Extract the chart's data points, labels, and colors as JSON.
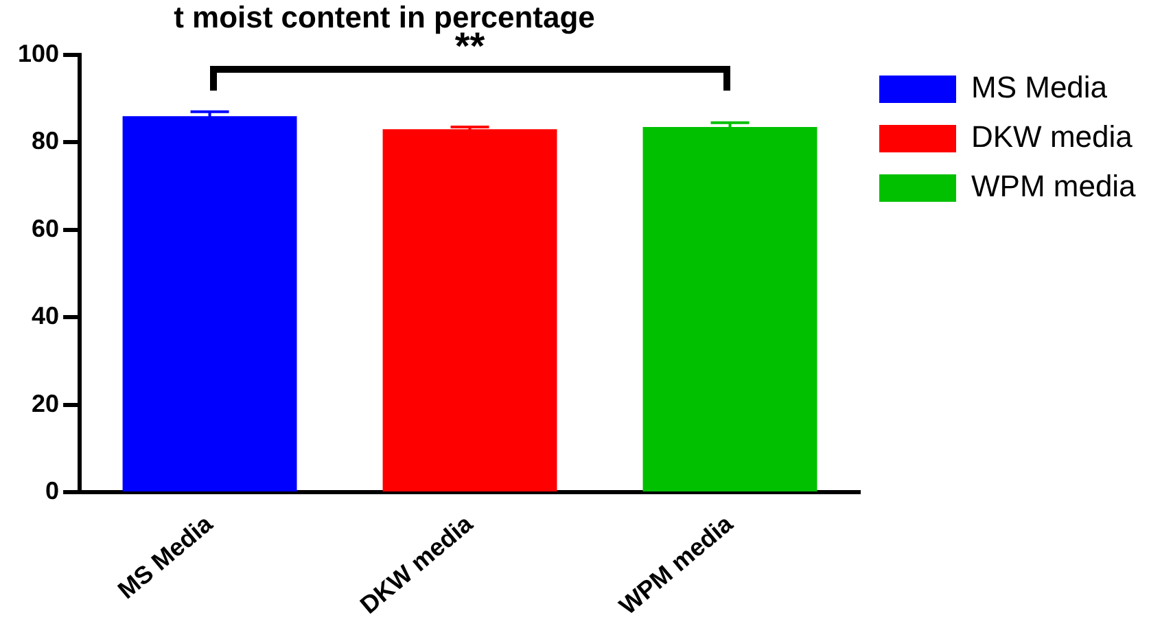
{
  "chart_data": {
    "type": "bar",
    "title": "t moist content in percentage",
    "categories": [
      "MS Media",
      "DKW media",
      "WPM media"
    ],
    "series": [
      {
        "name": "MS Media",
        "color": "#0000ff",
        "values": [
          86,
          null,
          null
        ],
        "errors": [
          1,
          null,
          null
        ]
      },
      {
        "name": "DKW media",
        "color": "#ff0000",
        "values": [
          null,
          83,
          null
        ],
        "errors": [
          null,
          0.5,
          null
        ]
      },
      {
        "name": "WPM media",
        "color": "#00c000",
        "values": [
          null,
          null,
          83.5
        ],
        "errors": [
          null,
          null,
          1
        ]
      }
    ],
    "ylim": [
      0,
      100
    ],
    "yticks": [
      0,
      20,
      40,
      60,
      80,
      100
    ],
    "grid": false,
    "legend": "right",
    "annotations": [
      "**"
    ]
  }
}
